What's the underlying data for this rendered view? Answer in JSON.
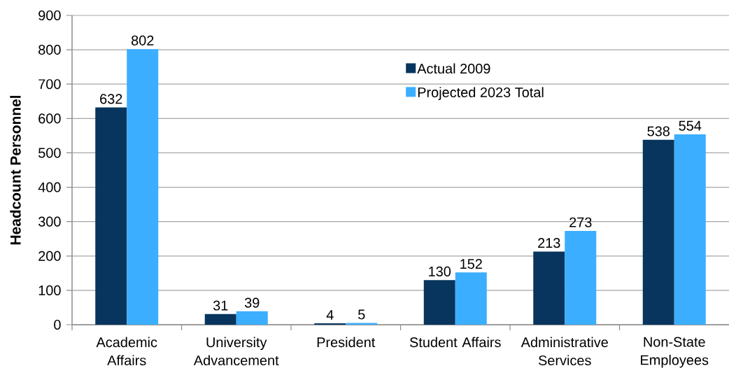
{
  "chart_data": {
    "type": "bar",
    "ylabel": "Headcount Personnel",
    "categories": [
      "Academic Affairs",
      "University Advancement",
      "President",
      "Student Affairs",
      "Administrative Services",
      "Non-State Employees"
    ],
    "series": [
      {
        "name": "Actual 2009",
        "color": "#07355d",
        "values": [
          632,
          31,
          4,
          130,
          213,
          538
        ]
      },
      {
        "name": "Projected 2023 Total",
        "color": "#3baeff",
        "values": [
          802,
          39,
          5,
          152,
          273,
          554
        ]
      }
    ],
    "ylim": [
      0,
      900
    ],
    "yticks": [
      0,
      100,
      200,
      300,
      400,
      500,
      600,
      700,
      800,
      900
    ],
    "grid": "y",
    "legend": "top",
    "data_labels": true
  }
}
